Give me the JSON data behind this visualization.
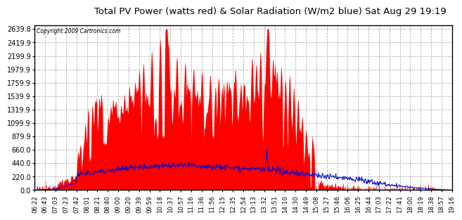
{
  "title": "Total PV Power (watts red) & Solar Radiation (W/m2 blue) Sat Aug 29 19:19",
  "copyright": "Copyright 2009 Cartronics.com",
  "bg_color": "#ffffff",
  "plot_bg_color": "#ffffff",
  "grid_color": "#aaaaaa",
  "red_color": "#ff0000",
  "blue_color": "#0000cc",
  "y_ticks": [
    0.0,
    220.0,
    440.0,
    660.0,
    879.9,
    1099.9,
    1319.9,
    1539.9,
    1759.9,
    1979.9,
    2199.9,
    2419.9,
    2639.8
  ],
  "x_tick_labels": [
    "06:22",
    "06:43",
    "07:03",
    "07:23",
    "07:42",
    "08:01",
    "08:21",
    "08:40",
    "09:00",
    "09:20",
    "09:39",
    "09:59",
    "10:18",
    "10:37",
    "10:57",
    "11:16",
    "11:36",
    "11:56",
    "12:15",
    "12:35",
    "12:54",
    "13:13",
    "13:32",
    "13:51",
    "14:10",
    "14:30",
    "14:49",
    "15:08",
    "15:27",
    "15:46",
    "16:06",
    "16:25",
    "16:44",
    "17:03",
    "17:22",
    "17:41",
    "18:00",
    "18:19",
    "18:38",
    "18:57",
    "19:16"
  ],
  "ymax": 2700
}
